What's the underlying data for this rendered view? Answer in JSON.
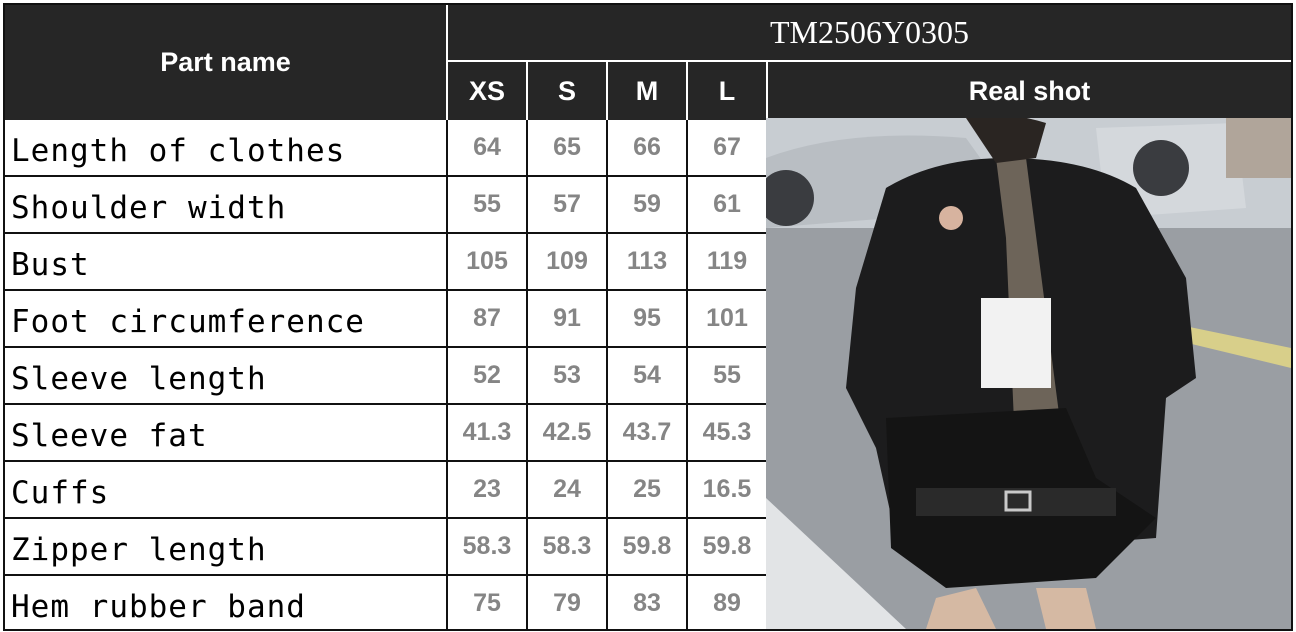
{
  "header": {
    "part_name_label": "Part name",
    "product_code": "TM2506Y0305",
    "sizes": [
      "XS",
      "S",
      "M",
      "L"
    ],
    "real_shot_label": "Real shot"
  },
  "rows": [
    {
      "name": "Length of clothes",
      "values": [
        "64",
        "65",
        "66",
        "67"
      ]
    },
    {
      "name": "Shoulder width",
      "values": [
        "55",
        "57",
        "59",
        "61"
      ]
    },
    {
      "name": "Bust",
      "values": [
        "105",
        "109",
        "113",
        "119"
      ]
    },
    {
      "name": "Foot circumference",
      "values": [
        "87",
        "91",
        "95",
        "101"
      ]
    },
    {
      "name": "Sleeve length",
      "values": [
        "52",
        "53",
        "54",
        "55"
      ]
    },
    {
      "name": "Sleeve fat",
      "values": [
        "41.3",
        "42.5",
        "43.7",
        "45.3"
      ]
    },
    {
      "name": "Cuffs",
      "values": [
        "23",
        "24",
        "25",
        "16.5"
      ]
    },
    {
      "name": "Zipper length",
      "values": [
        "58.3",
        "58.3",
        "59.8",
        "59.8"
      ]
    },
    {
      "name": "Hem rubber band",
      "values": [
        "75",
        "79",
        "83",
        "89"
      ]
    }
  ],
  "colors": {
    "header_bg": "#262626",
    "value_text": "#858585"
  }
}
